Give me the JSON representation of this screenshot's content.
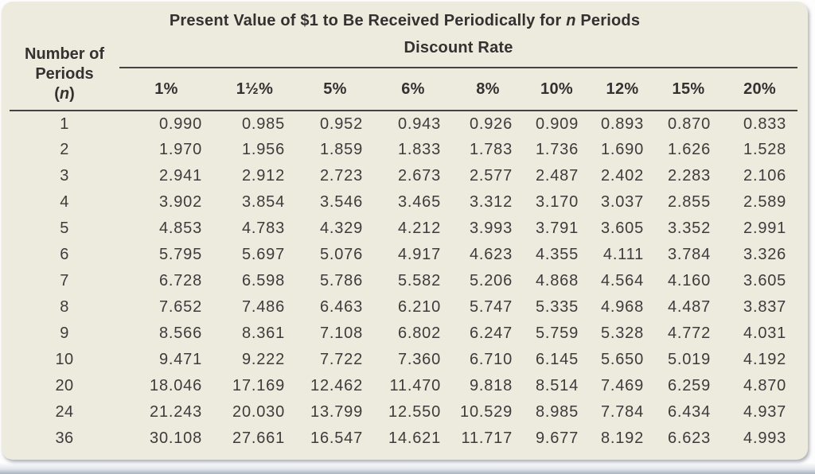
{
  "title": {
    "prefix": "Present Value of $1 to Be Received Periodically for ",
    "italic": "n",
    "suffix": " Periods"
  },
  "periods_header": {
    "line1": "Number of",
    "line2": "Periods",
    "paren_open": "(",
    "n_italic": "n",
    "paren_close": ")"
  },
  "discount_rate_label": "Discount Rate",
  "rate_columns": [
    "1%",
    "1½%",
    "5%",
    "6%",
    "8%",
    "10%",
    "12%",
    "15%",
    "20%"
  ],
  "rows": [
    {
      "n": "1",
      "values": [
        "0.990",
        "0.985",
        "0.952",
        "0.943",
        "0.926",
        "0.909",
        "0.893",
        "0.870",
        "0.833"
      ]
    },
    {
      "n": "2",
      "values": [
        "1.970",
        "1.956",
        "1.859",
        "1.833",
        "1.783",
        "1.736",
        "1.690",
        "1.626",
        "1.528"
      ]
    },
    {
      "n": "3",
      "values": [
        "2.941",
        "2.912",
        "2.723",
        "2.673",
        "2.577",
        "2.487",
        "2.402",
        "2.283",
        "2.106"
      ]
    },
    {
      "n": "4",
      "values": [
        "3.902",
        "3.854",
        "3.546",
        "3.465",
        "3.312",
        "3.170",
        "3.037",
        "2.855",
        "2.589"
      ]
    },
    {
      "n": "5",
      "values": [
        "4.853",
        "4.783",
        "4.329",
        "4.212",
        "3.993",
        "3.791",
        "3.605",
        "3.352",
        "2.991"
      ]
    },
    {
      "n": "6",
      "values": [
        "5.795",
        "5.697",
        "5.076",
        "4.917",
        "4.623",
        "4.355",
        "4.111",
        "3.784",
        "3.326"
      ]
    },
    {
      "n": "7",
      "values": [
        "6.728",
        "6.598",
        "5.786",
        "5.582",
        "5.206",
        "4.868",
        "4.564",
        "4.160",
        "3.605"
      ]
    },
    {
      "n": "8",
      "values": [
        "7.652",
        "7.486",
        "6.463",
        "6.210",
        "5.747",
        "5.335",
        "4.968",
        "4.487",
        "3.837"
      ]
    },
    {
      "n": "9",
      "values": [
        "8.566",
        "8.361",
        "7.108",
        "6.802",
        "6.247",
        "5.759",
        "5.328",
        "4.772",
        "4.031"
      ]
    },
    {
      "n": "10",
      "values": [
        "9.471",
        "9.222",
        "7.722",
        "7.360",
        "6.710",
        "6.145",
        "5.650",
        "5.019",
        "4.192"
      ]
    },
    {
      "n": "20",
      "values": [
        "18.046",
        "17.169",
        "12.462",
        "11.470",
        "9.818",
        "8.514",
        "7.469",
        "6.259",
        "4.870"
      ]
    },
    {
      "n": "24",
      "values": [
        "21.243",
        "20.030",
        "13.799",
        "12.550",
        "10.529",
        "8.985",
        "7.784",
        "6.434",
        "4.937"
      ]
    },
    {
      "n": "36",
      "values": [
        "30.108",
        "27.661",
        "16.547",
        "14.621",
        "11.717",
        "9.677",
        "8.192",
        "6.623",
        "4.993"
      ]
    }
  ],
  "colors": {
    "card_background": "#EDEADE",
    "text": "#3C3C3C",
    "rule": "#434343",
    "page_edge": "#A9B2C1"
  }
}
